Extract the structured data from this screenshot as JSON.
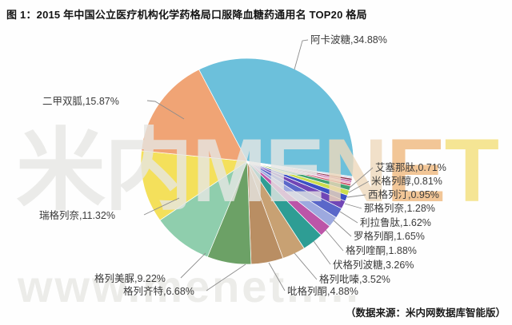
{
  "figure": {
    "title": "图 1：2015 年中国公立医疗机构化学药格局口服降血糖药通用名 TOP20 格局",
    "source_note": "（数据来源：米内网数据库智能版）"
  },
  "watermark": {
    "part_gray": "米内ME",
    "part_tan": "N",
    "part_orange": "E",
    "part_yellow": "T",
    "url_line": "www.menet....."
  },
  "chart_data": {
    "type": "pie",
    "title": "2015 年中国公立医疗机构化学药格局口服降血糖药通用名 TOP20 格局",
    "units": "%",
    "start_angle_deg": -27,
    "direction": "clockwise",
    "legend_position": "none",
    "label_style": "outside-with-leader-lines",
    "series": [
      {
        "name": "阿卡波糖",
        "value": 34.88,
        "color": "#6cc0db",
        "labeled": true
      },
      {
        "name": "",
        "value": 0.29,
        "color": "#d8d9e8",
        "labeled": false
      },
      {
        "name": "",
        "value": 0.29,
        "color": "#8e2f4b",
        "labeled": false
      },
      {
        "name": "",
        "value": 0.29,
        "color": "#b7559f",
        "labeled": false
      },
      {
        "name": "",
        "value": 0.3,
        "color": "#e2a3c6",
        "labeled": false
      },
      {
        "name": "",
        "value": 0.3,
        "color": "#c43f55",
        "labeled": false
      },
      {
        "name": "艾塞那肽",
        "value": 0.71,
        "color": "#41a173",
        "labeled": true
      },
      {
        "name": "米格列醇",
        "value": 0.81,
        "color": "#cbdd4d",
        "labeled": true
      },
      {
        "name": "西格列汀",
        "value": 0.95,
        "color": "#3c51c5",
        "labeled": true
      },
      {
        "name": "那格列奈",
        "value": 1.28,
        "color": "#7146b6",
        "labeled": true
      },
      {
        "name": "利拉鲁肽",
        "value": 1.62,
        "color": "#5a67c9",
        "labeled": true
      },
      {
        "name": "罗格列酮",
        "value": 1.65,
        "color": "#9da9df",
        "labeled": true
      },
      {
        "name": "格列喹酮",
        "value": 1.88,
        "color": "#bc55a8",
        "labeled": true
      },
      {
        "name": "伏格列波糖",
        "value": 3.26,
        "color": "#2e9d94",
        "labeled": true
      },
      {
        "name": "格列吡嗪",
        "value": 3.52,
        "color": "#c8a173",
        "labeled": true
      },
      {
        "name": "吡格列酮",
        "value": 4.88,
        "color": "#b98e63",
        "labeled": true
      },
      {
        "name": "格列齐特",
        "value": 6.68,
        "color": "#6ca166",
        "labeled": true
      },
      {
        "name": "格列美脲",
        "value": 9.22,
        "color": "#8fcead",
        "labeled": true
      },
      {
        "name": "瑞格列奈",
        "value": 11.32,
        "color": "#f4e05b",
        "labeled": true
      },
      {
        "name": "二甲双胍",
        "value": 15.87,
        "color": "#f0a475",
        "labeled": true
      }
    ]
  }
}
